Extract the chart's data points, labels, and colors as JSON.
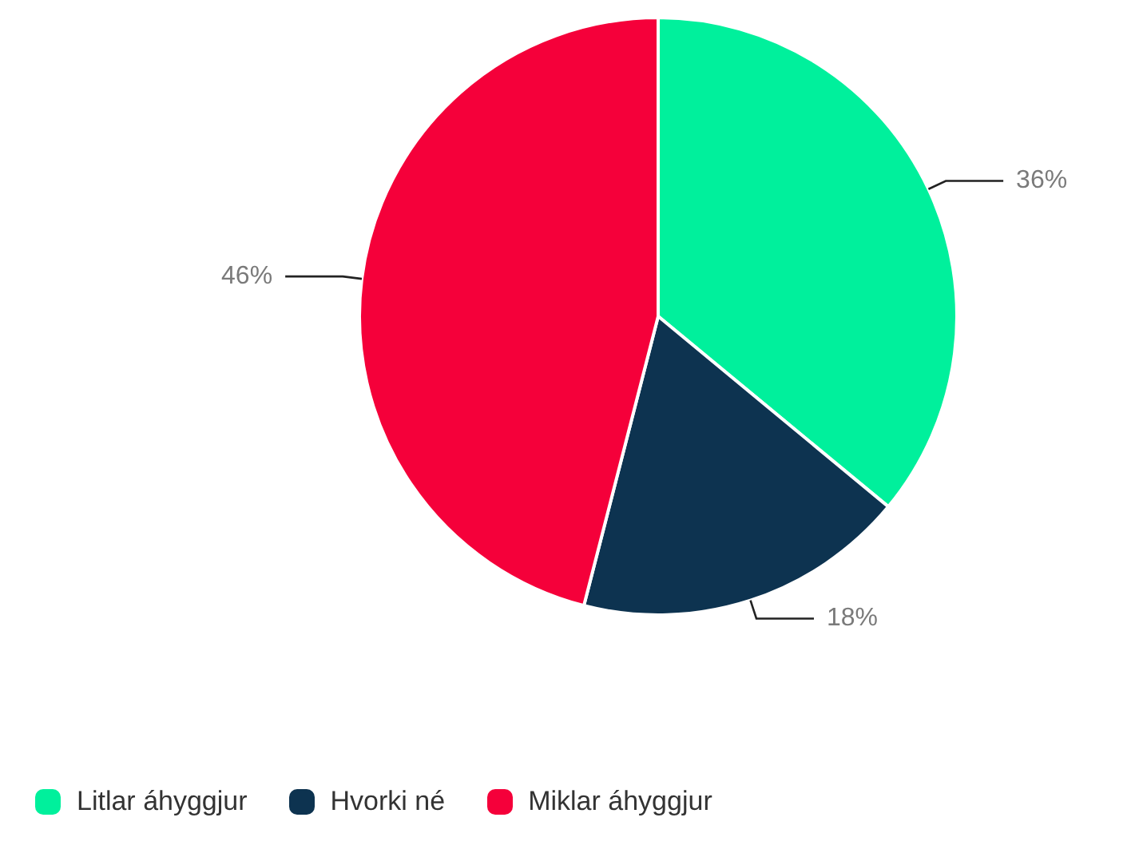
{
  "chart_data": {
    "type": "pie",
    "categories": [
      "Litlar áhyggjur",
      "Hvorki né",
      "Miklar áhyggjur"
    ],
    "values": [
      36,
      18,
      46
    ],
    "colors": [
      "#00f09c",
      "#0d3350",
      "#f5003a"
    ],
    "value_labels": [
      "36%",
      "18%",
      "46%"
    ],
    "legend": "bottom left"
  }
}
